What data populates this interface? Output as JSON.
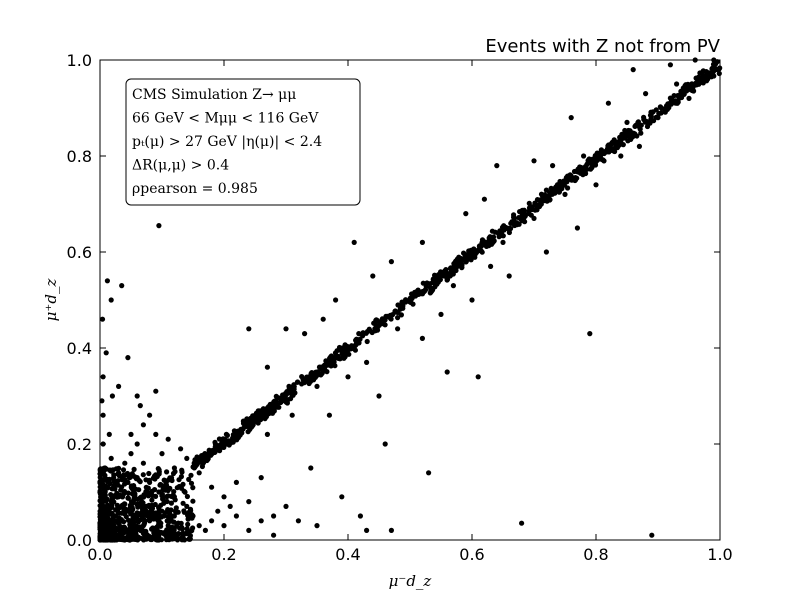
{
  "chart_data": {
    "type": "scatter",
    "title": "Events with Z not from PV",
    "xlabel": "μ⁻d_z",
    "ylabel": "μ⁺d_z",
    "xlim": [
      0.0,
      1.0
    ],
    "ylim": [
      0.0,
      1.0
    ],
    "xticks": [
      "0.0",
      "0.2",
      "0.4",
      "0.6",
      "0.8",
      "1.0"
    ],
    "yticks": [
      "0.0",
      "0.2",
      "0.4",
      "0.6",
      "0.8",
      "1.0"
    ],
    "grid": false,
    "marker_color": "#000000",
    "legend": {
      "placement": "top-left",
      "lines": [
        "CMS Simulation Z→ μμ",
        "66 GeV < Mμμ < 116 GeV",
        "pₜ(μ) > 27 GeV        |η(μ)| < 2.4",
        "ΔR(μ,μ) > 0.4",
        "ρpearson = 0.985"
      ]
    },
    "points": [
      [
        0.005,
        0.002
      ],
      [
        0.012,
        0.008
      ],
      [
        0.02,
        0.015
      ],
      [
        0.03,
        0.01
      ],
      [
        0.04,
        0.025
      ],
      [
        0.05,
        0.02
      ],
      [
        0.015,
        0.035
      ],
      [
        0.025,
        0.05
      ],
      [
        0.035,
        0.04
      ],
      [
        0.045,
        0.06
      ],
      [
        0.055,
        0.045
      ],
      [
        0.065,
        0.055
      ],
      [
        0.075,
        0.07
      ],
      [
        0.01,
        0.06
      ],
      [
        0.02,
        0.08
      ],
      [
        0.03,
        0.09
      ],
      [
        0.04,
        0.075
      ],
      [
        0.06,
        0.085
      ],
      [
        0.07,
        0.03
      ],
      [
        0.08,
        0.04
      ],
      [
        0.09,
        0.05
      ],
      [
        0.1,
        0.06
      ],
      [
        0.11,
        0.03
      ],
      [
        0.012,
        0.11
      ],
      [
        0.022,
        0.13
      ],
      [
        0.008,
        0.15
      ],
      [
        0.018,
        0.17
      ],
      [
        0.005,
        0.2
      ],
      [
        0.015,
        0.22
      ],
      [
        0.03,
        0.14
      ],
      [
        0.045,
        0.12
      ],
      [
        0.06,
        0.13
      ],
      [
        0.07,
        0.16
      ],
      [
        0.08,
        0.12
      ],
      [
        0.095,
        0.1
      ],
      [
        0.105,
        0.08
      ],
      [
        0.12,
        0.09
      ],
      [
        0.13,
        0.11
      ],
      [
        0.14,
        0.07
      ],
      [
        0.15,
        0.05
      ],
      [
        0.16,
        0.03
      ],
      [
        0.17,
        0.02
      ],
      [
        0.18,
        0.04
      ],
      [
        0.19,
        0.06
      ],
      [
        0.2,
        0.03
      ],
      [
        0.21,
        0.07
      ],
      [
        0.22,
        0.05
      ],
      [
        0.24,
        0.02
      ],
      [
        0.26,
        0.04
      ],
      [
        0.28,
        0.01
      ],
      [
        0.005,
        0.26
      ],
      [
        0.003,
        0.29
      ],
      [
        0.004,
        0.46
      ],
      [
        0.012,
        0.54
      ],
      [
        0.018,
        0.5
      ],
      [
        0.035,
        0.53
      ],
      [
        0.045,
        0.38
      ],
      [
        0.095,
        0.655
      ],
      [
        0.05,
        0.22
      ],
      [
        0.06,
        0.2
      ],
      [
        0.07,
        0.24
      ],
      [
        0.08,
        0.26
      ],
      [
        0.09,
        0.22
      ],
      [
        0.065,
        0.28
      ],
      [
        0.1,
        0.18
      ],
      [
        0.11,
        0.21
      ],
      [
        0.12,
        0.15
      ],
      [
        0.13,
        0.19
      ],
      [
        0.14,
        0.17
      ],
      [
        0.16,
        0.14
      ],
      [
        0.17,
        0.17
      ],
      [
        0.02,
        0.02
      ],
      [
        0.025,
        0.012
      ],
      [
        0.033,
        0.028
      ],
      [
        0.042,
        0.018
      ],
      [
        0.048,
        0.032
      ],
      [
        0.058,
        0.012
      ],
      [
        0.062,
        0.038
      ],
      [
        0.072,
        0.015
      ],
      [
        0.085,
        0.025
      ],
      [
        0.092,
        0.013
      ],
      [
        0.098,
        0.035
      ],
      [
        0.006,
        0.045
      ],
      [
        0.014,
        0.065
      ],
      [
        0.028,
        0.072
      ],
      [
        0.038,
        0.058
      ],
      [
        0.052,
        0.068
      ],
      [
        0.068,
        0.078
      ],
      [
        0.078,
        0.092
      ],
      [
        0.088,
        0.105
      ],
      [
        0.02,
        0.3
      ],
      [
        0.03,
        0.32
      ],
      [
        0.06,
        0.3
      ],
      [
        0.09,
        0.31
      ],
      [
        0.005,
        0.34
      ],
      [
        0.01,
        0.39
      ],
      [
        0.3,
        0.44
      ],
      [
        0.33,
        0.43
      ],
      [
        0.41,
        0.62
      ],
      [
        0.44,
        0.55
      ],
      [
        0.47,
        0.58
      ],
      [
        0.27,
        0.36
      ],
      [
        0.35,
        0.32
      ],
      [
        0.37,
        0.26
      ],
      [
        0.4,
        0.34
      ],
      [
        0.43,
        0.37
      ],
      [
        0.45,
        0.3
      ],
      [
        0.46,
        0.2
      ],
      [
        0.48,
        0.44
      ],
      [
        0.52,
        0.42
      ],
      [
        0.53,
        0.14
      ],
      [
        0.55,
        0.47
      ],
      [
        0.57,
        0.53
      ],
      [
        0.6,
        0.5
      ],
      [
        0.61,
        0.34
      ],
      [
        0.63,
        0.57
      ],
      [
        0.65,
        0.62
      ],
      [
        0.66,
        0.55
      ],
      [
        0.68,
        0.035
      ],
      [
        0.7,
        0.67
      ],
      [
        0.72,
        0.6
      ],
      [
        0.73,
        0.78
      ],
      [
        0.75,
        0.72
      ],
      [
        0.77,
        0.65
      ],
      [
        0.78,
        0.8
      ],
      [
        0.8,
        0.74
      ],
      [
        0.82,
        0.91
      ],
      [
        0.84,
        0.8
      ],
      [
        0.85,
        0.87
      ],
      [
        0.87,
        0.82
      ],
      [
        0.88,
        0.93
      ],
      [
        0.89,
        0.01
      ],
      [
        0.9,
        0.88
      ],
      [
        0.92,
        0.99
      ],
      [
        0.93,
        0.95
      ],
      [
        0.95,
        0.92
      ],
      [
        0.96,
        1.0
      ],
      [
        0.98,
        0.96
      ],
      [
        0.99,
        1.0
      ],
      [
        0.86,
        0.98
      ],
      [
        0.76,
        0.88
      ],
      [
        0.7,
        0.79
      ],
      [
        0.64,
        0.78
      ],
      [
        0.59,
        0.68
      ],
      [
        0.62,
        0.71
      ],
      [
        0.79,
        0.43
      ],
      [
        0.56,
        0.35
      ],
      [
        0.52,
        0.62
      ],
      [
        0.38,
        0.5
      ],
      [
        0.36,
        0.46
      ],
      [
        0.24,
        0.44
      ],
      [
        0.27,
        0.22
      ],
      [
        0.31,
        0.26
      ],
      [
        0.35,
        0.03
      ],
      [
        0.42,
        0.05
      ],
      [
        0.47,
        0.02
      ],
      [
        0.39,
        0.09
      ],
      [
        0.43,
        0.02
      ],
      [
        0.34,
        0.15
      ],
      [
        0.25,
        0.25
      ],
      [
        0.2,
        0.09
      ],
      [
        0.18,
        0.11
      ],
      [
        0.22,
        0.12
      ],
      [
        0.24,
        0.08
      ],
      [
        0.26,
        0.13
      ],
      [
        0.28,
        0.05
      ],
      [
        0.3,
        0.07
      ],
      [
        0.32,
        0.04
      ],
      [
        0.04,
        0.16
      ],
      [
        0.05,
        0.18
      ]
    ]
  }
}
